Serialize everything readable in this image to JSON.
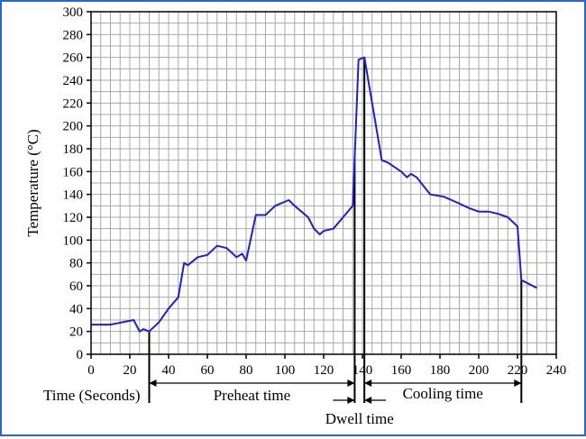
{
  "chart_data": {
    "type": "line",
    "title": "",
    "xlabel": "Time (Seconds)",
    "ylabel": "Temperature (°C)",
    "xlim": [
      0,
      240
    ],
    "ylim": [
      0,
      300
    ],
    "x_ticks": [
      0,
      20,
      40,
      60,
      80,
      100,
      120,
      140,
      160,
      180,
      200,
      220,
      240
    ],
    "y_ticks": [
      0,
      20,
      40,
      60,
      80,
      100,
      120,
      140,
      160,
      180,
      200,
      220,
      240,
      260,
      280,
      300
    ],
    "grid": true,
    "series": [
      {
        "color": "#1f1fd0",
        "x": [
          0,
          10,
          22,
          25,
          27,
          30,
          35,
          40,
          45,
          48,
          50,
          55,
          60,
          65,
          70,
          75,
          78,
          80,
          85,
          90,
          95,
          102,
          105,
          112,
          115,
          118,
          120,
          125,
          135,
          138,
          141,
          150,
          153,
          160,
          163,
          165,
          168,
          175,
          182,
          190,
          195,
          200,
          205,
          210,
          215,
          220,
          222,
          230
        ],
        "y": [
          26,
          26,
          30,
          20,
          22,
          20,
          28,
          40,
          50,
          80,
          78,
          85,
          87,
          95,
          93,
          85,
          88,
          82,
          122,
          122,
          130,
          135,
          130,
          120,
          110,
          105,
          108,
          110,
          130,
          258,
          260,
          170,
          168,
          160,
          155,
          158,
          155,
          140,
          138,
          132,
          128,
          125,
          125,
          123,
          120,
          112,
          65,
          58
        ]
      }
    ],
    "annotations": {
      "preheat": {
        "label": "Preheat time",
        "from": 30,
        "to": 136
      },
      "dwell": {
        "label": "Dwell time",
        "from": 136,
        "to": 141
      },
      "cooling": {
        "label": "Cooling time",
        "from": 141,
        "to": 222
      }
    }
  }
}
